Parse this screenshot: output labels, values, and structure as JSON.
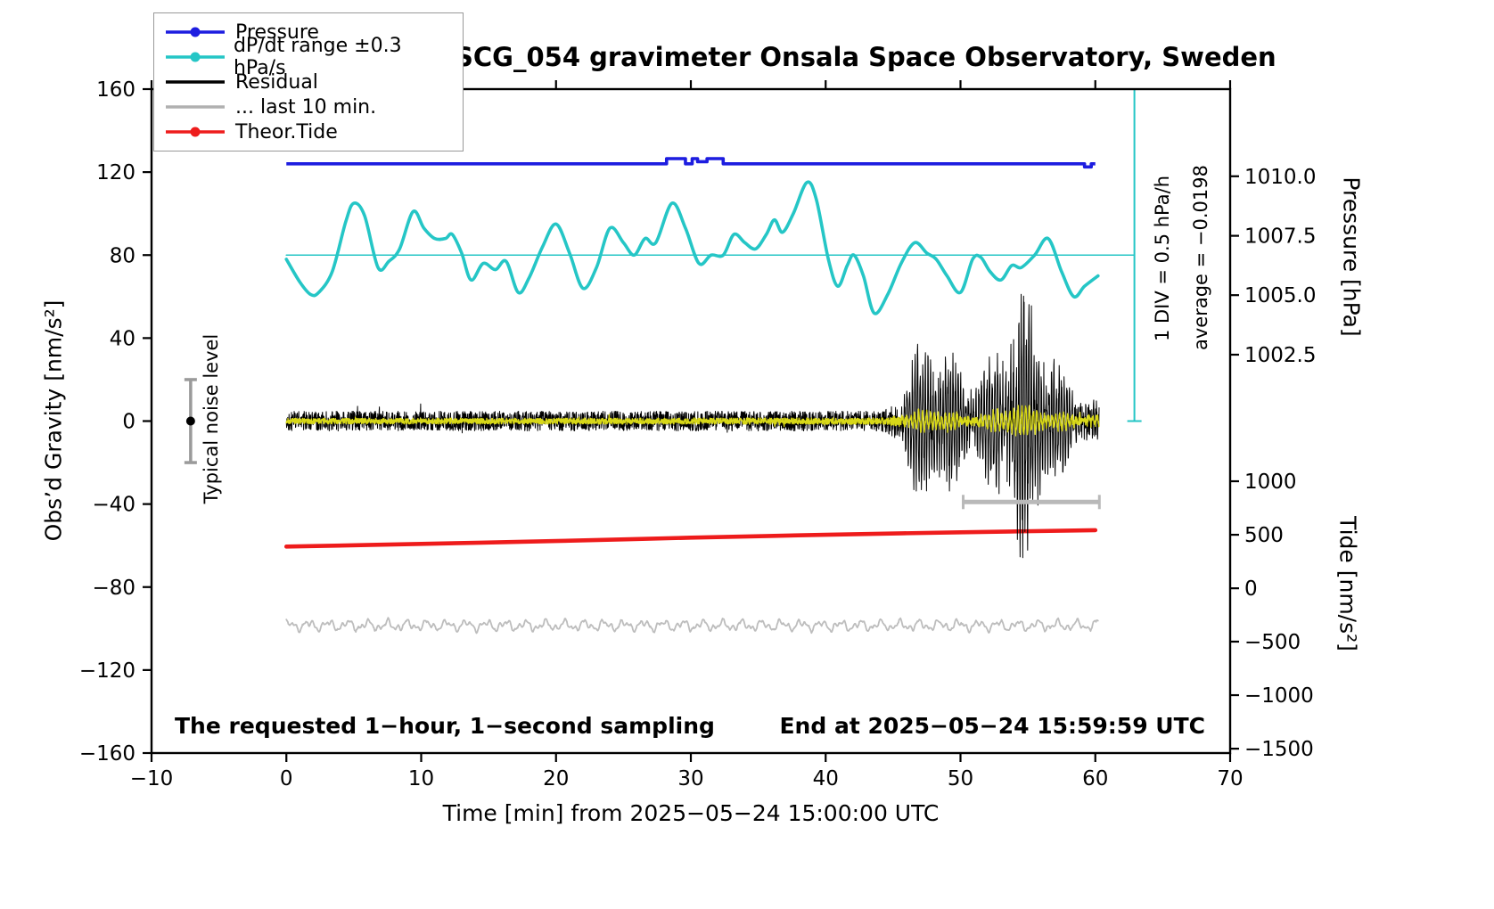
{
  "chart_data": {
    "type": "line",
    "title": "SCG_054 gravimeter Onsala Space Observatory, Sweden",
    "xlabel": "Time [min] from 2025−05−24 15:00:00 UTC",
    "ylabel_left": "Obs’d Gravity [nm/s²]",
    "ylabel_pressure": "Pressure [hPa]",
    "ylabel_tide": "Tide [nm/s²]",
    "xlim": [
      -10,
      70
    ],
    "ylim_left": [
      -160,
      160
    ],
    "x_ticks": [
      -10,
      0,
      10,
      20,
      30,
      40,
      50,
      60,
      70
    ],
    "y_left_ticks": [
      160,
      120,
      80,
      40,
      0,
      -40,
      -80,
      -120,
      -160
    ],
    "pressure_ticks": [
      {
        "label": "1010.0",
        "g": 118
      },
      {
        "label": "1007.5",
        "g": 89.3
      },
      {
        "label": "1005.0",
        "g": 60.7
      },
      {
        "label": "1002.5",
        "g": 32
      }
    ],
    "tide_ticks": [
      {
        "label": "1000",
        "g": -29
      },
      {
        "label": "500",
        "g": -54.8
      },
      {
        "label": "0",
        "g": -80.6
      },
      {
        "label": "−500",
        "g": -106.3
      },
      {
        "label": "−1000",
        "g": -132.1
      },
      {
        "label": "−1500",
        "g": -157.9
      }
    ],
    "legend": [
      {
        "label": "Pressure",
        "color": "#1d1de0",
        "dot": true
      },
      {
        "label": "dP/dt range ±0.3 hPa/s",
        "color": "#25c6c6",
        "dot": true
      },
      {
        "label": "Residual",
        "color": "#000000",
        "dot": false
      },
      {
        "label": "... last 10 min.",
        "color": "#b0b0b0",
        "dot": false
      },
      {
        "label": "Theor.Tide",
        "color": "#ee1c1c",
        "dot": true
      }
    ],
    "annotations": {
      "div_scale": "1 DIV = 0.5 hPa/h",
      "average": "average = −0.0198",
      "noise": "Typical noise level",
      "bottom_left": "The requested 1−hour, 1−second sampling",
      "bottom_right": "End at 2025−05−24 15:59:59 UTC"
    },
    "series": [
      {
        "name": "dP/dt reference",
        "type": "line",
        "color": "#25c6c6",
        "width": 1.6,
        "points": [
          [
            0,
            80
          ],
          [
            62.9,
            80
          ]
        ]
      },
      {
        "name": "Pressure",
        "type": "steps",
        "color": "#1d1de0",
        "width": 3.6,
        "points": [
          [
            0,
            124
          ],
          [
            28.2,
            124
          ],
          [
            28.2,
            126.5
          ],
          [
            29.6,
            126.5
          ],
          [
            29.6,
            124
          ],
          [
            30.1,
            124
          ],
          [
            30.1,
            126.5
          ],
          [
            30.5,
            126.5
          ],
          [
            30.5,
            125
          ],
          [
            31.2,
            125
          ],
          [
            31.2,
            126.5
          ],
          [
            32.4,
            126.5
          ],
          [
            32.4,
            124
          ],
          [
            59.2,
            124
          ],
          [
            59.2,
            122.5
          ],
          [
            59.7,
            122.5
          ],
          [
            59.7,
            124
          ],
          [
            60,
            124
          ]
        ]
      },
      {
        "name": "dP/dt range",
        "type": "spline",
        "color": "#25c6c6",
        "width": 3.6,
        "points": [
          [
            0,
            78
          ],
          [
            1,
            67
          ],
          [
            1.8,
            61
          ],
          [
            2.4,
            62
          ],
          [
            3.4,
            72
          ],
          [
            4.4,
            96
          ],
          [
            5,
            105
          ],
          [
            5.8,
            99
          ],
          [
            6.8,
            74
          ],
          [
            7.6,
            77
          ],
          [
            8.4,
            83
          ],
          [
            9.4,
            101
          ],
          [
            10.2,
            93
          ],
          [
            11,
            88
          ],
          [
            11.8,
            88
          ],
          [
            12.3,
            90
          ],
          [
            13,
            81
          ],
          [
            13.7,
            68
          ],
          [
            14.6,
            76
          ],
          [
            15.5,
            73
          ],
          [
            16.3,
            77
          ],
          [
            17.2,
            62
          ],
          [
            18,
            69
          ],
          [
            19,
            84
          ],
          [
            20,
            95
          ],
          [
            21,
            81
          ],
          [
            22,
            64
          ],
          [
            23,
            74
          ],
          [
            24,
            93
          ],
          [
            25,
            86
          ],
          [
            25.8,
            80
          ],
          [
            26.6,
            88
          ],
          [
            27.4,
            86
          ],
          [
            28.6,
            105
          ],
          [
            29.6,
            93
          ],
          [
            30.6,
            76
          ],
          [
            31.5,
            80
          ],
          [
            32.4,
            80
          ],
          [
            33.2,
            90
          ],
          [
            34,
            86
          ],
          [
            34.8,
            83
          ],
          [
            35.6,
            90
          ],
          [
            36.2,
            97
          ],
          [
            36.8,
            91
          ],
          [
            37.6,
            100
          ],
          [
            38.6,
            115
          ],
          [
            39.3,
            107
          ],
          [
            40.2,
            78
          ],
          [
            40.9,
            65
          ],
          [
            41.6,
            75
          ],
          [
            42.1,
            80
          ],
          [
            42.8,
            70
          ],
          [
            43.6,
            52
          ],
          [
            44.6,
            61
          ],
          [
            45.6,
            76
          ],
          [
            46.6,
            86
          ],
          [
            47.5,
            81
          ],
          [
            48.2,
            78
          ],
          [
            49,
            70
          ],
          [
            50,
            62
          ],
          [
            50.9,
            78
          ],
          [
            51.5,
            79
          ],
          [
            52.2,
            72
          ],
          [
            53,
            68
          ],
          [
            53.8,
            75
          ],
          [
            54.5,
            74
          ],
          [
            55.5,
            80
          ],
          [
            56.5,
            88
          ],
          [
            57.5,
            72
          ],
          [
            58.4,
            60
          ],
          [
            59.2,
            65
          ],
          [
            60.2,
            70
          ]
        ]
      },
      {
        "name": "last 10 min",
        "type": "wiggle",
        "color": "#bdbdbd",
        "width": 1.8,
        "base": -98.5,
        "seed": 3,
        "x_range": [
          0,
          60.2
        ]
      },
      {
        "name": "Theor.Tide",
        "type": "spline",
        "color": "#ee1c1c",
        "width": 4.6,
        "points": [
          [
            0,
            -60.5
          ],
          [
            10,
            -59.2
          ],
          [
            20,
            -57.8
          ],
          [
            30,
            -56.2
          ],
          [
            40,
            -54.8
          ],
          [
            50,
            -53.6
          ],
          [
            60,
            -52.6
          ]
        ]
      },
      {
        "name": "Residual",
        "type": "noise",
        "color": "#000000",
        "width": 1,
        "seed": 42,
        "freq": 5.2,
        "osc_onset": 6,
        "osc_span": 18,
        "x_range": [
          0,
          60.3
        ],
        "envelope": [
          [
            0,
            5
          ],
          [
            43.5,
            5
          ],
          [
            44.5,
            6
          ],
          [
            45.2,
            12
          ],
          [
            46,
            24
          ],
          [
            46.8,
            36
          ],
          [
            47.5,
            44
          ],
          [
            48.2,
            40
          ],
          [
            49,
            34
          ],
          [
            50,
            27
          ],
          [
            51,
            23
          ],
          [
            51.8,
            26
          ],
          [
            52.6,
            36
          ],
          [
            53.4,
            52
          ],
          [
            54.2,
            64
          ],
          [
            54.6,
            68
          ],
          [
            55,
            58
          ],
          [
            55.6,
            60
          ],
          [
            56.2,
            44
          ],
          [
            57,
            33
          ],
          [
            57.8,
            24
          ],
          [
            58.6,
            18
          ],
          [
            59.4,
            14
          ],
          [
            60.3,
            12
          ]
        ]
      },
      {
        "name": "Residual filtered",
        "type": "noise",
        "color": "#d8d818",
        "width": 1.4,
        "seed": 7,
        "freq": 3.4,
        "osc_onset": 2,
        "osc_span": 5,
        "x_range": [
          0,
          60.3
        ],
        "envelope": [
          [
            0,
            1.4
          ],
          [
            44,
            1.6
          ],
          [
            45,
            2.5
          ],
          [
            46,
            4.5
          ],
          [
            47,
            6.5
          ],
          [
            48,
            7.5
          ],
          [
            49,
            6
          ],
          [
            50,
            5
          ],
          [
            51,
            4.5
          ],
          [
            52,
            5.5
          ],
          [
            53,
            7.5
          ],
          [
            54,
            9.5
          ],
          [
            55,
            8
          ],
          [
            56,
            7
          ],
          [
            57,
            6
          ],
          [
            58,
            5.5
          ],
          [
            59,
            5
          ],
          [
            60.3,
            4.5
          ]
        ]
      }
    ],
    "markers": {
      "dpdt_scalebar": {
        "x": 62.9,
        "g_from": 0,
        "g_to": 160,
        "color": "#25c6c6"
      },
      "last10_bar": {
        "g": -39,
        "x_from": 50.2,
        "x_to": 60.3,
        "color": "#b9b9b9"
      },
      "noise_errorbar": {
        "x": -7.1,
        "g_from": -20,
        "g_to": 20,
        "dot_g": 0,
        "color": "#9a9a9a"
      }
    }
  }
}
